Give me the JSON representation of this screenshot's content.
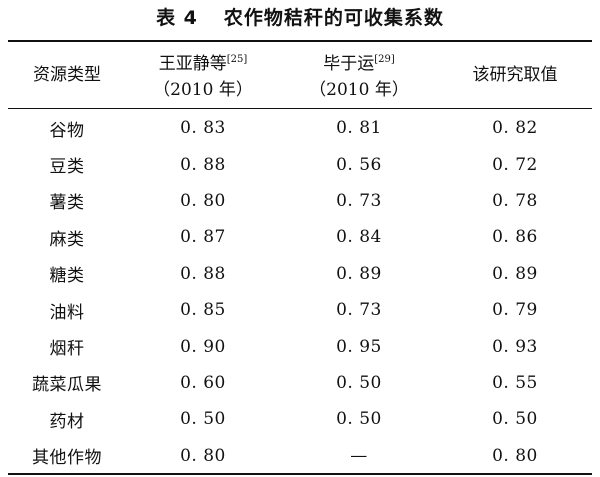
{
  "title": {
    "number": "表 4",
    "text": "农作物秸秆的可收集系数"
  },
  "headers": {
    "col0": "资源类型",
    "col1_line1": "王亚静等",
    "col1_ref": "[25]",
    "col1_line2": "（2010 年）",
    "col2_line1": "毕于运",
    "col2_ref": "[29]",
    "col2_line2": "（2010 年）",
    "col3": "该研究取值"
  },
  "rows": [
    {
      "type": "谷物",
      "wang": "0. 83",
      "bi": "0. 81",
      "this": "0. 82"
    },
    {
      "type": "豆类",
      "wang": "0. 88",
      "bi": "0. 56",
      "this": "0. 72"
    },
    {
      "type": "薯类",
      "wang": "0. 80",
      "bi": "0. 73",
      "this": "0. 78"
    },
    {
      "type": "麻类",
      "wang": "0. 87",
      "bi": "0. 84",
      "this": "0. 86"
    },
    {
      "type": "糖类",
      "wang": "0. 88",
      "bi": "0. 89",
      "this": "0. 89"
    },
    {
      "type": "油料",
      "wang": "0. 85",
      "bi": "0. 73",
      "this": "0. 79"
    },
    {
      "type": "烟秆",
      "wang": "0. 90",
      "bi": "0. 95",
      "this": "0. 93"
    },
    {
      "type": "蔬菜瓜果",
      "wang": "0. 60",
      "bi": "0. 50",
      "this": "0. 55"
    },
    {
      "type": "药材",
      "wang": "0. 50",
      "bi": "0. 50",
      "this": "0. 50"
    },
    {
      "type": "其他作物",
      "wang": "0. 80",
      "bi": "—",
      "this": "0. 80"
    }
  ]
}
